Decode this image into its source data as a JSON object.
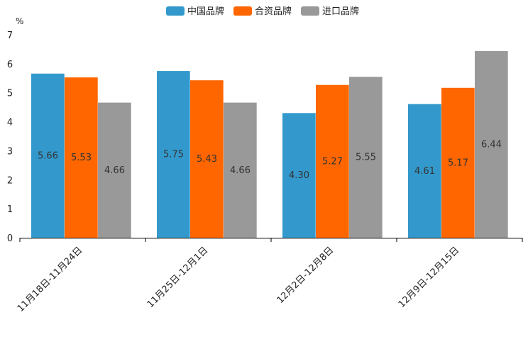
{
  "chart_data": {
    "type": "bar",
    "title": "",
    "xlabel": "",
    "ylabel": "%",
    "ylim": [
      0,
      7
    ],
    "yticks": [
      0,
      1,
      2,
      3,
      4,
      5,
      6,
      7
    ],
    "grid": false,
    "legend_position": "top-center",
    "categories": [
      "11月18日-11月24日",
      "11月25日-12月1日",
      "12月2日-12月8日",
      "12月9日-12月15日"
    ],
    "series": [
      {
        "name": "中国品牌",
        "color": "#3399CC",
        "values": [
          5.66,
          5.75,
          4.3,
          4.61
        ],
        "labels": [
          "5.66",
          "5.75",
          "4.30",
          "4.61"
        ]
      },
      {
        "name": "合资品牌",
        "color": "#FF6600",
        "values": [
          5.53,
          5.43,
          5.27,
          5.17
        ],
        "labels": [
          "5.53",
          "5.43",
          "5.27",
          "5.17"
        ]
      },
      {
        "name": "进口品牌",
        "color": "#999999",
        "values": [
          4.66,
          4.66,
          5.55,
          6.44
        ],
        "labels": [
          "4.66",
          "4.66",
          "5.55",
          "6.44"
        ]
      }
    ]
  }
}
